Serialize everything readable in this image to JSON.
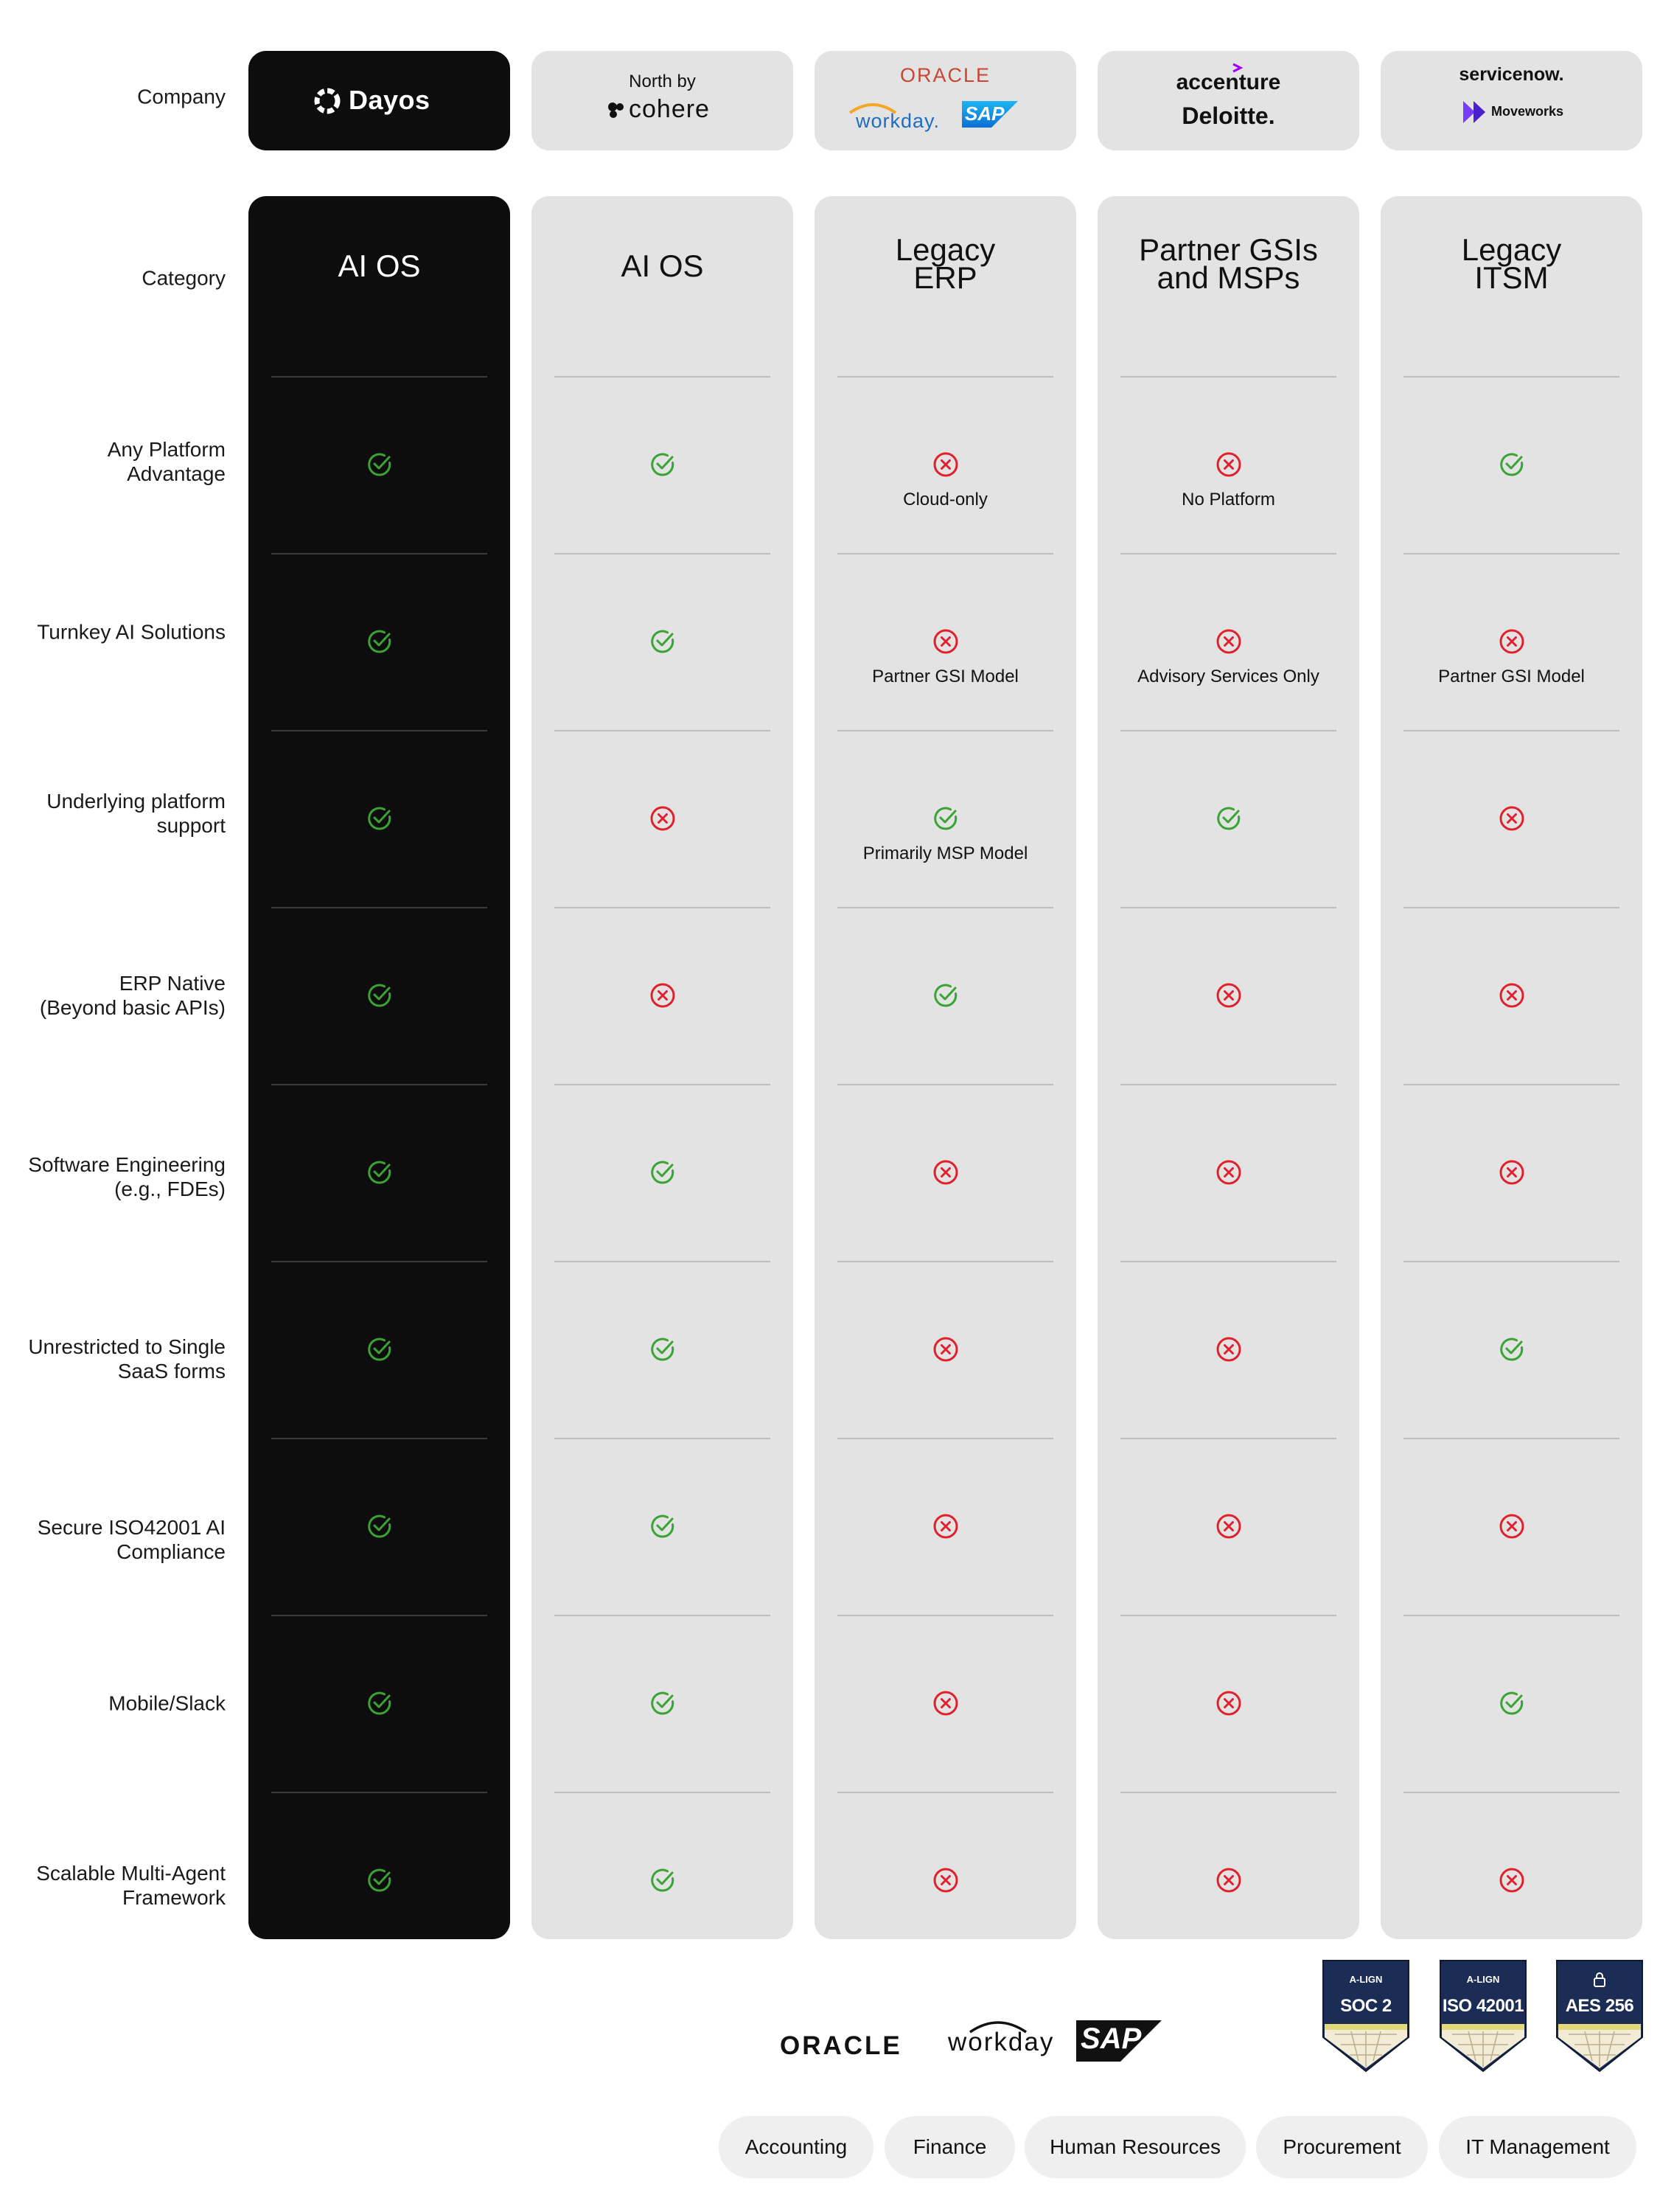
{
  "company_label": "Company",
  "companies": [
    {
      "id": "dayos",
      "logo_text": "Dayos"
    },
    {
      "id": "cohere",
      "prefix": "North by",
      "logo_text": "cohere"
    },
    {
      "id": "legacy-erp",
      "logos": [
        "ORACLE",
        "workday.",
        "SAP"
      ]
    },
    {
      "id": "gsi",
      "logos": [
        "accenture",
        "Deloitte."
      ]
    },
    {
      "id": "itsm",
      "logos": [
        "servicenow.",
        "Moveworks"
      ]
    }
  ],
  "category_label": "Category",
  "categories": [
    "AI OS",
    "AI OS",
    "Legacy\nERP",
    "Partner GSIs\nand MSPs",
    "Legacy\nITSM"
  ],
  "rows": [
    {
      "label": "Any Platform\nAdvantage",
      "cells": [
        {
          "v": "check"
        },
        {
          "v": "check"
        },
        {
          "v": "cross",
          "note": "Cloud-only"
        },
        {
          "v": "cross",
          "note": "No Platform"
        },
        {
          "v": "check"
        }
      ]
    },
    {
      "label": "Turnkey AI Solutions",
      "cells": [
        {
          "v": "check"
        },
        {
          "v": "check"
        },
        {
          "v": "cross",
          "note": "Partner GSI Model"
        },
        {
          "v": "cross",
          "note": "Advisory Services Only"
        },
        {
          "v": "cross",
          "note": "Partner GSI Model"
        }
      ]
    },
    {
      "label": "Underlying platform\nsupport",
      "cells": [
        {
          "v": "check"
        },
        {
          "v": "cross"
        },
        {
          "v": "check",
          "note": "Primarily MSP Model"
        },
        {
          "v": "check"
        },
        {
          "v": "cross"
        }
      ]
    },
    {
      "label": "ERP Native\n(Beyond basic APIs)",
      "cells": [
        {
          "v": "check"
        },
        {
          "v": "cross"
        },
        {
          "v": "check"
        },
        {
          "v": "cross"
        },
        {
          "v": "cross"
        }
      ]
    },
    {
      "label": "Software Engineering\n(e.g., FDEs)",
      "cells": [
        {
          "v": "check"
        },
        {
          "v": "check"
        },
        {
          "v": "cross"
        },
        {
          "v": "cross"
        },
        {
          "v": "cross"
        }
      ]
    },
    {
      "label": "Unrestricted to Single\nSaaS forms",
      "cells": [
        {
          "v": "check"
        },
        {
          "v": "check"
        },
        {
          "v": "cross"
        },
        {
          "v": "cross"
        },
        {
          "v": "check"
        }
      ]
    },
    {
      "label": "Secure ISO42001  AI\nCompliance",
      "cells": [
        {
          "v": "check"
        },
        {
          "v": "check"
        },
        {
          "v": "cross"
        },
        {
          "v": "cross"
        },
        {
          "v": "cross"
        }
      ]
    },
    {
      "label": "Mobile/Slack",
      "cells": [
        {
          "v": "check"
        },
        {
          "v": "check"
        },
        {
          "v": "cross"
        },
        {
          "v": "cross"
        },
        {
          "v": "check"
        }
      ]
    },
    {
      "label": "Scalable Multi-Agent\nFramework",
      "cells": [
        {
          "v": "check"
        },
        {
          "v": "check"
        },
        {
          "v": "cross"
        },
        {
          "v": "cross"
        },
        {
          "v": "cross"
        }
      ]
    }
  ],
  "integration_logos": [
    "ORACLE",
    "workday",
    "SAP"
  ],
  "badges": [
    {
      "org": "A-LIGN",
      "title": "SOC 2"
    },
    {
      "org": "A-LIGN",
      "title": "ISO 42001"
    },
    {
      "org": "",
      "title": "AES 256"
    }
  ],
  "pills": [
    "Accounting",
    "Finance",
    "Human Resources",
    "Procurement",
    "IT Management"
  ],
  "colors": {
    "check": "#3aa335",
    "cross": "#e0212b",
    "dark_col": "#0d0d0d",
    "light_col": "#e3e3e3"
  }
}
